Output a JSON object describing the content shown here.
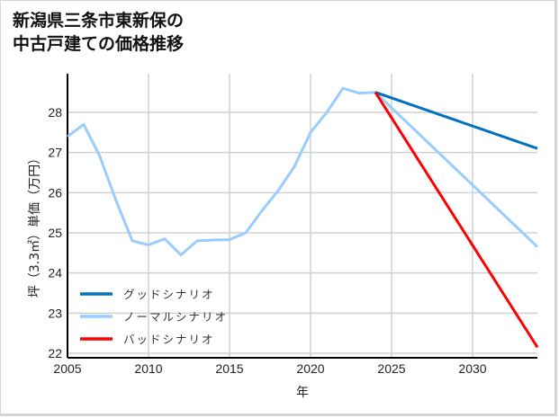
{
  "title_line1": "新潟県三条市東新保の",
  "title_line2": "中古戸建ての価格推移",
  "chart_data": {
    "type": "line",
    "title": "新潟県三条市東新保の中古戸建ての価格推移",
    "xlabel": "年",
    "ylabel": "坪（3.3㎡）単価（万円）",
    "xlim": [
      2005,
      2034
    ],
    "ylim": [
      22,
      29
    ],
    "x_ticks": [
      2005,
      2010,
      2015,
      2020,
      2025,
      2030
    ],
    "y_ticks": [
      22,
      23,
      24,
      25,
      26,
      27,
      28
    ],
    "grid": true,
    "legend_position": "lower left",
    "series": [
      {
        "name": "グッドシナリオ",
        "color": "#0070C0",
        "x": [
          2024,
          2034
        ],
        "values": [
          28.5,
          27.1
        ]
      },
      {
        "name": "ノーマルシナリオ",
        "color": "#99CCFF",
        "x": [
          2005,
          2006,
          2007,
          2008,
          2009,
          2010,
          2011,
          2012,
          2013,
          2014,
          2015,
          2016,
          2017,
          2018,
          2019,
          2020,
          2021,
          2022,
          2023,
          2024,
          2034
        ],
        "values": [
          27.4,
          27.7,
          26.9,
          25.8,
          24.8,
          24.7,
          24.85,
          24.45,
          24.8,
          24.82,
          24.83,
          25.0,
          25.55,
          26.05,
          26.65,
          27.5,
          28.0,
          28.6,
          28.48,
          28.5,
          24.65
        ]
      },
      {
        "name": "バッドシナリオ",
        "color": "#FF0000",
        "x": [
          2024,
          2034
        ],
        "values": [
          28.5,
          22.15
        ]
      }
    ]
  }
}
